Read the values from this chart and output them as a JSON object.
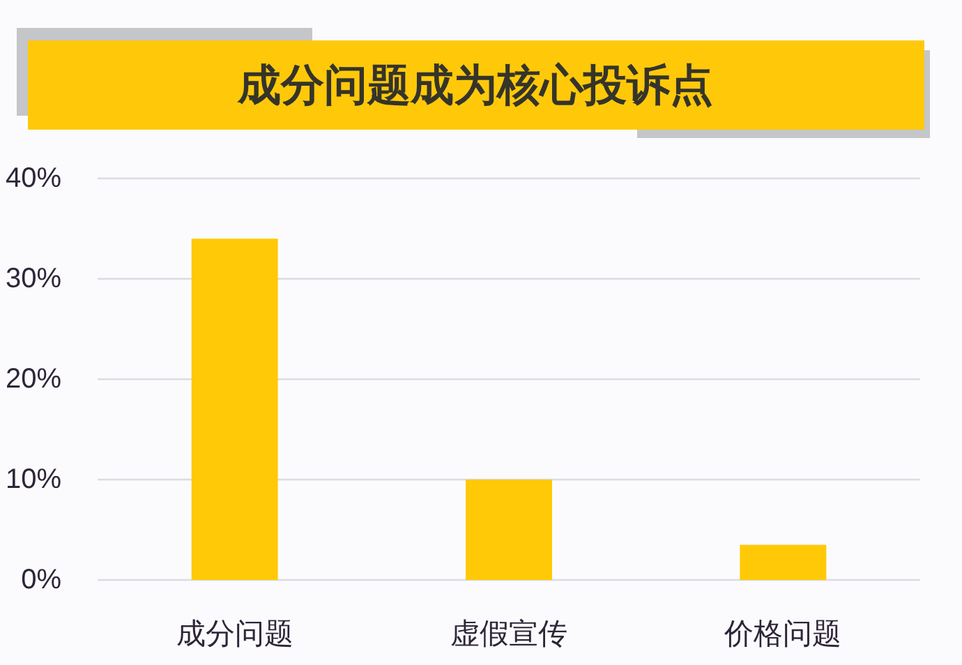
{
  "chart_data": {
    "type": "bar",
    "title": "成分问题成为核心投诉点",
    "categories": [
      "成分问题",
      "虚假宣传",
      "价格问题"
    ],
    "values": [
      34,
      10,
      3.5
    ],
    "color": "#ffc907",
    "ylim": [
      0,
      40
    ],
    "yticks": [
      {
        "value": 0,
        "label": "0%"
      },
      {
        "value": 10,
        "label": "10%"
      },
      {
        "value": 20,
        "label": "20%"
      },
      {
        "value": 30,
        "label": "30%"
      },
      {
        "value": 40,
        "label": "40%"
      }
    ],
    "grid": "y"
  }
}
